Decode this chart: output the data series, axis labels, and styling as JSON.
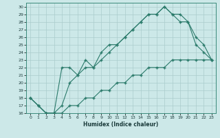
{
  "xlabel": "Humidex (Indice chaleur)",
  "bg_color": "#cce8e8",
  "grid_color": "#aacccc",
  "line_color": "#2a7a6a",
  "xlim": [
    -0.5,
    23.5
  ],
  "ylim": [
    16,
    30.5
  ],
  "yticks": [
    16,
    17,
    18,
    19,
    20,
    21,
    22,
    23,
    24,
    25,
    26,
    27,
    28,
    29,
    30
  ],
  "xticks": [
    0,
    1,
    2,
    3,
    4,
    5,
    6,
    7,
    8,
    9,
    10,
    11,
    12,
    13,
    14,
    15,
    16,
    17,
    18,
    19,
    20,
    21,
    22,
    23
  ],
  "line1_x": [
    0,
    1,
    2,
    3,
    4,
    5,
    6,
    7,
    8,
    9,
    10,
    11,
    12,
    13,
    14,
    15,
    16,
    17,
    18,
    19,
    20,
    21,
    22,
    23
  ],
  "line1_y": [
    18,
    17,
    16,
    16,
    16,
    17,
    17,
    18,
    18,
    19,
    19,
    20,
    20,
    21,
    21,
    22,
    22,
    22,
    23,
    23,
    23,
    23,
    23,
    23
  ],
  "line2_x": [
    0,
    1,
    2,
    3,
    4,
    5,
    6,
    7,
    8,
    9,
    10,
    11,
    12,
    13,
    14,
    15,
    16,
    17,
    18,
    19,
    20,
    21,
    22,
    23
  ],
  "line2_y": [
    18,
    17,
    16,
    16,
    22,
    22,
    21,
    23,
    22,
    24,
    25,
    25,
    26,
    27,
    28,
    29,
    29,
    30,
    29,
    28,
    28,
    25,
    24,
    23
  ],
  "line3_x": [
    0,
    1,
    2,
    3,
    4,
    5,
    6,
    7,
    8,
    9,
    10,
    11,
    12,
    13,
    14,
    15,
    16,
    17,
    18,
    19,
    20,
    21,
    22,
    23
  ],
  "line3_y": [
    18,
    17,
    16,
    16,
    17,
    20,
    21,
    22,
    22,
    23,
    24,
    25,
    26,
    27,
    28,
    29,
    29,
    30,
    29,
    29,
    28,
    26,
    25,
    23
  ]
}
